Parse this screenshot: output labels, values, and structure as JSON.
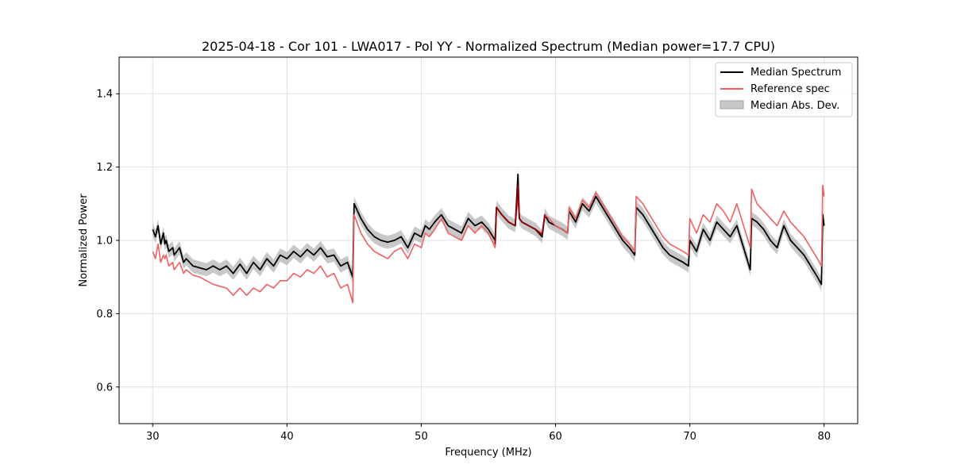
{
  "chart_data": {
    "type": "line",
    "title": "2025-04-18 - Cor 101 - LWA017 - Pol YY - Normalized Spectrum (Median power=17.7 CPU)",
    "xlabel": "Frequency (MHz)",
    "ylabel": "Normalized Power",
    "xlim": [
      27.5,
      82.5
    ],
    "ylim": [
      0.5,
      1.5
    ],
    "xticks": [
      30,
      40,
      50,
      60,
      70,
      80
    ],
    "yticks": [
      0.6,
      0.8,
      1.0,
      1.2,
      1.4
    ],
    "xtick_labels": [
      "30",
      "40",
      "50",
      "60",
      "70",
      "80"
    ],
    "ytick_labels": [
      "0.6",
      "0.8",
      "1.0",
      "1.2",
      "1.4"
    ],
    "grid": true,
    "legend_position": "top-right",
    "colors": {
      "median": "#000000",
      "reference": "#f06060",
      "overlap": "#8b0000",
      "mad_fill": "#b0b0b0",
      "grid": "#e0e0e0"
    },
    "mad_width": 0.018,
    "series": [
      {
        "name": "Median Spectrum",
        "style": "line",
        "x": [
          30.0,
          30.2,
          30.4,
          30.6,
          30.8,
          30.9,
          31.0,
          31.2,
          31.5,
          31.6,
          32.0,
          32.3,
          32.5,
          33.0,
          33.5,
          34.0,
          34.5,
          35.0,
          35.5,
          36.0,
          36.5,
          37.0,
          37.5,
          38.0,
          38.5,
          39.0,
          39.5,
          40.0,
          40.5,
          41.0,
          41.5,
          42.0,
          42.5,
          43.0,
          43.5,
          44.0,
          44.5,
          44.9,
          45.0,
          45.5,
          46.0,
          46.5,
          47.0,
          47.5,
          48.0,
          48.5,
          49.0,
          49.5,
          50.0,
          50.3,
          50.6,
          51.0,
          51.5,
          52.0,
          52.5,
          53.0,
          53.5,
          54.0,
          54.5,
          55.0,
          55.5,
          55.6,
          56.0,
          56.5,
          57.0,
          57.2,
          57.3,
          57.5,
          58.0,
          58.5,
          59.0,
          59.2,
          59.5,
          60.0,
          60.5,
          60.9,
          61.0,
          61.5,
          62.0,
          62.5,
          63.0,
          63.5,
          64.0,
          64.5,
          65.0,
          65.5,
          65.9,
          66.0,
          66.5,
          67.0,
          67.5,
          68.0,
          68.5,
          69.0,
          69.5,
          69.9,
          70.0,
          70.5,
          71.0,
          71.5,
          72.0,
          72.5,
          73.0,
          73.5,
          74.0,
          74.5,
          74.6,
          75.0,
          75.5,
          76.0,
          76.5,
          77.0,
          77.5,
          78.0,
          78.5,
          79.0,
          79.5,
          79.8,
          79.9,
          80.0
        ],
        "y": [
          1.03,
          1.01,
          1.04,
          0.99,
          1.02,
          0.99,
          1.0,
          0.97,
          0.98,
          0.96,
          0.98,
          0.94,
          0.95,
          0.93,
          0.925,
          0.92,
          0.93,
          0.92,
          0.93,
          0.91,
          0.935,
          0.91,
          0.94,
          0.92,
          0.95,
          0.93,
          0.96,
          0.95,
          0.97,
          0.955,
          0.975,
          0.96,
          0.98,
          0.955,
          0.96,
          0.93,
          0.94,
          0.9,
          1.1,
          1.06,
          1.03,
          1.01,
          1.0,
          0.995,
          1.0,
          1.01,
          0.98,
          1.02,
          1.01,
          1.04,
          1.03,
          1.05,
          1.07,
          1.04,
          1.03,
          1.02,
          1.06,
          1.04,
          1.05,
          1.03,
          1.0,
          1.09,
          1.07,
          1.05,
          1.04,
          1.18,
          1.06,
          1.05,
          1.04,
          1.03,
          1.01,
          1.07,
          1.05,
          1.04,
          1.03,
          1.02,
          1.08,
          1.05,
          1.1,
          1.08,
          1.12,
          1.09,
          1.06,
          1.03,
          1.0,
          0.98,
          0.96,
          1.09,
          1.07,
          1.04,
          1.01,
          0.98,
          0.96,
          0.95,
          0.94,
          0.93,
          1.0,
          0.97,
          1.03,
          1.0,
          1.05,
          1.03,
          1.01,
          1.04,
          0.98,
          0.92,
          1.06,
          1.05,
          1.03,
          1.0,
          0.98,
          1.04,
          1.0,
          0.98,
          0.96,
          0.93,
          0.9,
          0.88,
          1.07,
          1.04
        ],
        "color": "#000000"
      },
      {
        "name": "Reference spec",
        "style": "line",
        "x": [
          30.0,
          30.2,
          30.4,
          30.6,
          30.8,
          30.9,
          31.0,
          31.2,
          31.5,
          31.6,
          32.0,
          32.3,
          32.5,
          33.0,
          33.5,
          34.0,
          34.5,
          35.0,
          35.5,
          36.0,
          36.5,
          37.0,
          37.5,
          38.0,
          38.5,
          39.0,
          39.5,
          40.0,
          40.5,
          41.0,
          41.5,
          42.0,
          42.5,
          43.0,
          43.5,
          44.0,
          44.5,
          44.9,
          45.0,
          45.5,
          46.0,
          46.5,
          47.0,
          47.5,
          48.0,
          48.5,
          49.0,
          49.5,
          50.0,
          50.3,
          50.6,
          51.0,
          51.5,
          52.0,
          52.5,
          53.0,
          53.5,
          54.0,
          54.5,
          55.0,
          55.5,
          55.6,
          56.0,
          56.5,
          57.0,
          57.2,
          57.3,
          57.5,
          58.0,
          58.5,
          59.0,
          59.2,
          59.5,
          60.0,
          60.5,
          60.9,
          61.0,
          61.5,
          62.0,
          62.5,
          63.0,
          63.5,
          64.0,
          64.5,
          65.0,
          65.5,
          65.9,
          66.0,
          66.5,
          67.0,
          67.5,
          68.0,
          68.5,
          69.0,
          69.5,
          69.9,
          70.0,
          70.5,
          71.0,
          71.5,
          72.0,
          72.5,
          73.0,
          73.5,
          74.0,
          74.5,
          74.6,
          75.0,
          75.5,
          76.0,
          76.5,
          77.0,
          77.5,
          78.0,
          78.5,
          79.0,
          79.5,
          79.8,
          79.9,
          80.0
        ],
        "y": [
          0.97,
          0.95,
          0.99,
          0.94,
          0.96,
          0.95,
          0.96,
          0.93,
          0.94,
          0.92,
          0.94,
          0.91,
          0.92,
          0.905,
          0.9,
          0.89,
          0.88,
          0.875,
          0.87,
          0.85,
          0.87,
          0.85,
          0.87,
          0.86,
          0.88,
          0.87,
          0.89,
          0.89,
          0.91,
          0.9,
          0.92,
          0.91,
          0.93,
          0.9,
          0.91,
          0.87,
          0.88,
          0.83,
          1.07,
          1.02,
          0.99,
          0.97,
          0.96,
          0.95,
          0.97,
          0.98,
          0.95,
          0.99,
          0.98,
          1.02,
          1.01,
          1.03,
          1.06,
          1.02,
          1.01,
          1.0,
          1.04,
          1.02,
          1.04,
          1.02,
          0.98,
          1.09,
          1.07,
          1.05,
          1.04,
          1.12,
          1.06,
          1.05,
          1.04,
          1.03,
          1.02,
          1.07,
          1.06,
          1.04,
          1.03,
          1.02,
          1.09,
          1.06,
          1.11,
          1.09,
          1.13,
          1.1,
          1.07,
          1.04,
          1.01,
          0.99,
          0.97,
          1.12,
          1.1,
          1.07,
          1.04,
          1.01,
          0.99,
          0.98,
          0.97,
          0.96,
          1.06,
          1.02,
          1.07,
          1.05,
          1.1,
          1.08,
          1.05,
          1.1,
          1.04,
          0.98,
          1.14,
          1.1,
          1.08,
          1.06,
          1.04,
          1.08,
          1.05,
          1.03,
          1.01,
          0.98,
          0.95,
          0.93,
          1.15,
          1.12
        ],
        "color": "#f06060"
      },
      {
        "name": "Median Abs. Dev.",
        "style": "band",
        "color": "#b0b0b0"
      }
    ]
  }
}
